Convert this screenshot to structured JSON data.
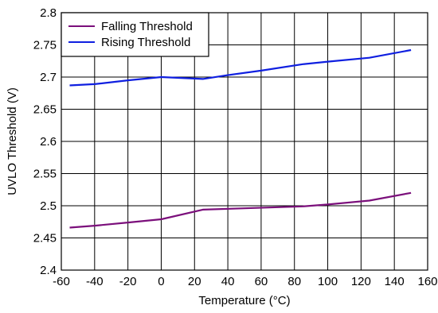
{
  "chart_data": {
    "type": "line",
    "title": "",
    "xlabel": "Temperature (°C)",
    "ylabel": "UVLO Threshold (V)",
    "xlim": [
      -60,
      160
    ],
    "ylim": [
      2.4,
      2.8
    ],
    "x_ticks": [
      -60,
      -40,
      -20,
      0,
      20,
      40,
      60,
      80,
      100,
      120,
      140,
      160
    ],
    "x_tick_labels": [
      "-60",
      "-40",
      "-20",
      "0",
      "20",
      "40",
      "60",
      "80",
      "100",
      "120",
      "140",
      "160"
    ],
    "y_ticks": [
      2.4,
      2.45,
      2.5,
      2.55,
      2.6,
      2.65,
      2.7,
      2.75,
      2.8
    ],
    "y_tick_labels": [
      "2.4",
      "2.45",
      "2.5",
      "2.55",
      "2.6",
      "2.65",
      "2.7",
      "2.75",
      "2.8"
    ],
    "grid": true,
    "legend_position": "top-left",
    "series": [
      {
        "name": "Falling Threshold",
        "color": "#7B0F7B",
        "x": [
          -55,
          -40,
          -20,
          0,
          25,
          50,
          85,
          100,
          125,
          150
        ],
        "y": [
          2.466,
          2.469,
          2.474,
          2.479,
          2.494,
          2.496,
          2.499,
          2.502,
          2.508,
          2.52
        ]
      },
      {
        "name": "Rising Threshold",
        "color": "#0F1FE0",
        "x": [
          -55,
          -40,
          -20,
          0,
          25,
          40,
          60,
          85,
          100,
          125,
          150
        ],
        "y": [
          2.687,
          2.689,
          2.695,
          2.7,
          2.697,
          2.703,
          2.71,
          2.72,
          2.724,
          2.73,
          2.742
        ]
      }
    ]
  }
}
